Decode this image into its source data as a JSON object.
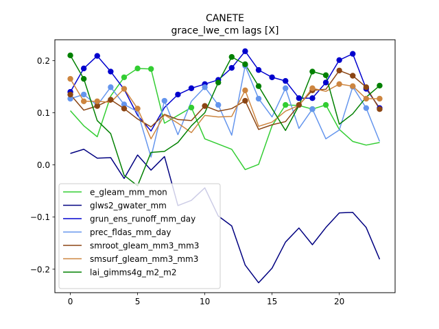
{
  "chart_data": {
    "type": "line",
    "title": "CANETE",
    "subtitle": "grace_lwe_cm lags [X]",
    "xlabel": "",
    "ylabel": "",
    "xlim": [
      -1.15,
      24.15
    ],
    "ylim": [
      -0.245,
      0.24
    ],
    "xticks": [
      0,
      5,
      10,
      15,
      20
    ],
    "yticks": [
      -0.2,
      -0.1,
      0.0,
      0.1,
      0.2
    ],
    "ytick_labels": [
      "−0.2",
      "−0.1",
      "0.0",
      "0.1",
      "0.2"
    ],
    "legend_position": "lower-left",
    "grid": false,
    "x": [
      0,
      1,
      2,
      3,
      4,
      5,
      6,
      7,
      8,
      9,
      10,
      11,
      12,
      13,
      14,
      15,
      16,
      17,
      18,
      19,
      20,
      21,
      22,
      23
    ],
    "series": [
      {
        "name": "e_gleam_mm_mon",
        "color": "#32cd32",
        "values": [
          0.104,
          0.075,
          0.054,
          0.132,
          0.168,
          0.185,
          0.184,
          0.08,
          0.095,
          0.11,
          0.05,
          0.04,
          0.03,
          -0.009,
          0.001,
          0.075,
          0.115,
          0.114,
          0.107,
          0.115,
          0.068,
          0.045,
          0.038,
          0.043
        ],
        "markers": [
          4,
          5,
          6,
          9,
          16,
          18,
          19
        ]
      },
      {
        "name": "glws2_gwater_mm",
        "color": "#000080",
        "values": [
          0.022,
          0.03,
          0.013,
          0.014,
          -0.026,
          0.019,
          -0.01,
          0.016,
          -0.078,
          -0.068,
          -0.044,
          -0.098,
          -0.117,
          -0.192,
          -0.226,
          -0.198,
          -0.148,
          -0.121,
          -0.153,
          -0.12,
          -0.092,
          -0.091,
          -0.12,
          -0.181
        ],
        "markers": []
      },
      {
        "name": "grun_ens_runoff_mm_day",
        "color": "#0000cd",
        "values": [
          0.14,
          0.185,
          0.209,
          0.179,
          0.145,
          0.095,
          0.065,
          0.11,
          0.135,
          0.147,
          0.155,
          0.163,
          0.186,
          0.218,
          0.182,
          0.168,
          0.161,
          0.128,
          0.128,
          0.158,
          0.201,
          0.213,
          0.146,
          0.109
        ],
        "markers": [
          0,
          1,
          2,
          3,
          8,
          9,
          10,
          11,
          12,
          13,
          14,
          15,
          16,
          17,
          18,
          19,
          20,
          21,
          22,
          23
        ]
      },
      {
        "name": "prec_fldas_mm_day",
        "color": "#6495ed",
        "values": [
          0.127,
          0.135,
          0.114,
          0.149,
          0.116,
          0.102,
          0.015,
          0.123,
          0.058,
          0.122,
          0.149,
          0.115,
          0.057,
          0.19,
          0.127,
          0.092,
          0.147,
          0.07,
          0.107,
          0.05,
          0.067,
          0.15,
          0.109,
          0.045
        ],
        "markers": [
          0,
          1,
          2,
          3,
          4,
          7,
          10,
          11,
          13,
          14,
          16,
          18,
          21,
          22
        ]
      },
      {
        "name": "smroot_gleam_mm3_mm3",
        "color": "#8b4513",
        "values": [
          0.135,
          0.105,
          0.113,
          0.125,
          0.108,
          0.088,
          0.073,
          0.097,
          0.087,
          0.085,
          0.113,
          0.103,
          0.108,
          0.123,
          0.068,
          0.077,
          0.083,
          0.115,
          0.143,
          0.145,
          0.181,
          0.171,
          0.149,
          0.107
        ],
        "markers": [
          0,
          2,
          3,
          4,
          10,
          13,
          17,
          18,
          20,
          21,
          22,
          23
        ]
      },
      {
        "name": "smsurf_gleam_mm3_mm3",
        "color": "#cd853f",
        "values": [
          0.165,
          0.122,
          0.122,
          0.12,
          0.146,
          0.108,
          0.05,
          0.096,
          0.08,
          0.062,
          0.095,
          0.092,
          0.093,
          0.143,
          0.074,
          0.082,
          0.103,
          0.114,
          0.147,
          0.141,
          0.155,
          0.151,
          0.127,
          0.127
        ],
        "markers": [
          0,
          1,
          2,
          4,
          5,
          13,
          18,
          20,
          21,
          22,
          23
        ]
      },
      {
        "name": "lai_gimms4g_m2_m2",
        "color": "#008000",
        "values": [
          0.21,
          0.165,
          0.085,
          0.06,
          -0.02,
          -0.04,
          0.024,
          0.026,
          0.043,
          0.075,
          0.1,
          0.158,
          0.207,
          0.193,
          0.151,
          0.108,
          0.066,
          0.114,
          0.179,
          0.172,
          0.078,
          0.098,
          0.13,
          0.152
        ],
        "markers": [
          0,
          1,
          11,
          12,
          13,
          14,
          18,
          19,
          23
        ]
      }
    ]
  }
}
